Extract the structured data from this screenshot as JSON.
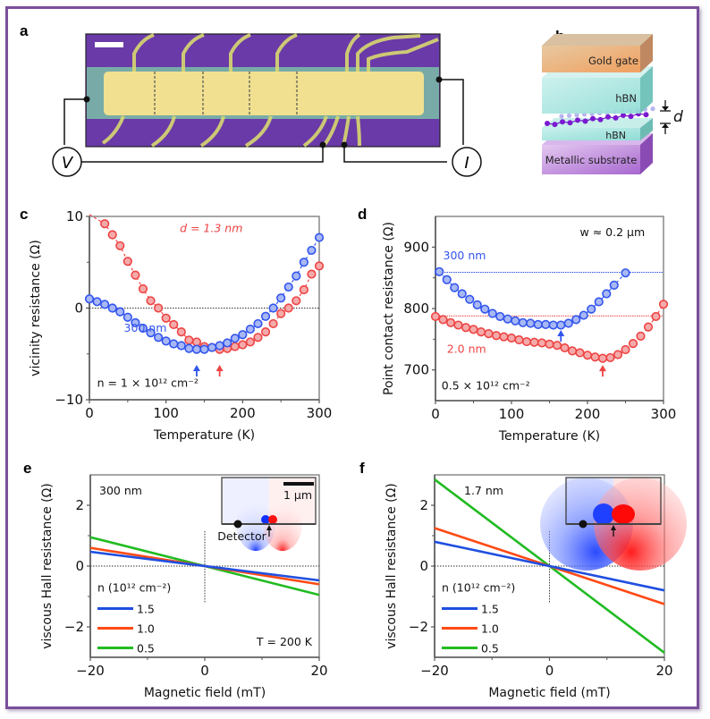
{
  "figure": {
    "panel_labels": [
      "a",
      "b",
      "c",
      "d",
      "e",
      "f"
    ],
    "colors": {
      "frame": "#7a4f9a",
      "blue": "#3355ee",
      "red": "#ee4444",
      "blue_fill": "#a8b8f4",
      "red_fill": "#f4aaaa",
      "line_blue": "#1f4fe0",
      "line_red": "#ff4a14",
      "line_green": "#22bb22"
    }
  },
  "panel_a": {
    "voltmeter_label": "V",
    "current_source_label": "I",
    "description": "optical micrograph of Hall bar device with voltage and current probes",
    "scale_bar": "white scale bar"
  },
  "panel_b": {
    "layers": [
      "Gold gate",
      "hBN",
      "hBN",
      "Metallic substrate"
    ],
    "spacing_label": "d"
  },
  "chart_data": [
    {
      "panel": "c",
      "type": "scatter",
      "title": "",
      "xlabel": "Temperature  (K)",
      "ylabel": "vicinity resistance  (Ω)",
      "xlim": [
        0,
        300
      ],
      "ylim": [
        -10,
        10
      ],
      "xticks": [
        "0",
        "100",
        "200",
        "300"
      ],
      "yticks": [
        "−10",
        "0",
        "10"
      ],
      "zero_line": true,
      "annotation": "n = 1 × 10¹² cm⁻²",
      "series": [
        {
          "name": "300 nm",
          "color": "blue",
          "x": [
            0,
            10,
            20,
            30,
            40,
            50,
            60,
            70,
            80,
            90,
            100,
            110,
            120,
            130,
            140,
            150,
            160,
            170,
            180,
            190,
            200,
            210,
            220,
            230,
            240,
            250,
            260,
            270,
            280,
            290,
            300
          ],
          "y": [
            1.0,
            0.7,
            0.4,
            0.0,
            -0.4,
            -1.0,
            -1.6,
            -2.2,
            -2.7,
            -3.2,
            -3.6,
            -3.9,
            -4.1,
            -4.4,
            -4.5,
            -4.5,
            -4.3,
            -4.1,
            -3.8,
            -3.3,
            -2.9,
            -2.3,
            -1.7,
            -0.9,
            0.0,
            1.1,
            2.3,
            3.5,
            5.0,
            6.3,
            7.7
          ],
          "marker_T": 140
        },
        {
          "name": "d = 1.3 nm",
          "color": "red",
          "x": [
            0,
            20,
            30,
            40,
            50,
            60,
            70,
            80,
            90,
            100,
            110,
            120,
            130,
            140,
            150,
            160,
            170,
            180,
            190,
            200,
            210,
            220,
            230,
            240,
            250,
            260,
            270,
            280,
            290,
            300
          ],
          "y": [
            10.2,
            9.2,
            8.0,
            6.8,
            5.1,
            3.6,
            2.1,
            0.8,
            0.0,
            -1.1,
            -1.8,
            -2.6,
            -3.5,
            -3.7,
            -4.2,
            -4.3,
            -4.5,
            -4.4,
            -4.2,
            -4.0,
            -3.7,
            -3.2,
            -2.6,
            -1.7,
            -0.6,
            0.0,
            0.8,
            2.0,
            3.7,
            4.6
          ],
          "marker_T": 170
        }
      ]
    },
    {
      "panel": "d",
      "type": "scatter",
      "title": "",
      "xlabel": "Temperature  (K)",
      "ylabel": "Point contact resistance  (Ω)",
      "xlim": [
        0,
        300
      ],
      "ylim": [
        650,
        950
      ],
      "xticks": [
        "0",
        "100",
        "200",
        "300"
      ],
      "yticks": [
        "700",
        "800",
        "900"
      ],
      "annotations": [
        "w ≈ 0.2 μm",
        "0.5 × 10¹² cm⁻²"
      ],
      "series": [
        {
          "name": "300 nm",
          "color": "blue",
          "reference_level": 859,
          "x": [
            5,
            15,
            25,
            35,
            45,
            55,
            65,
            75,
            85,
            95,
            105,
            115,
            125,
            135,
            145,
            155,
            165,
            175,
            185,
            195,
            205,
            215,
            225,
            235,
            250
          ],
          "y": [
            860,
            847,
            834,
            824,
            815,
            806,
            799,
            792,
            787,
            783,
            780,
            777,
            776,
            774,
            774,
            773,
            773,
            776,
            782,
            789,
            799,
            811,
            824,
            838,
            858
          ],
          "marker_T": 165
        },
        {
          "name": "2.0 nm",
          "color": "red",
          "reference_level": 788,
          "x": [
            0,
            10,
            20,
            30,
            40,
            50,
            60,
            70,
            80,
            90,
            100,
            110,
            120,
            130,
            140,
            150,
            160,
            170,
            180,
            190,
            200,
            210,
            220,
            230,
            240,
            250,
            260,
            270,
            280,
            290,
            300
          ],
          "y": [
            787,
            782,
            777,
            773,
            769,
            766,
            762,
            759,
            756,
            754,
            752,
            749,
            746,
            745,
            744,
            742,
            740,
            736,
            731,
            728,
            724,
            721,
            719,
            720,
            725,
            733,
            743,
            755,
            770,
            787,
            807
          ],
          "marker_T": 220
        }
      ]
    },
    {
      "panel": "e",
      "type": "line",
      "xlabel": "Magnetic field (mT)",
      "ylabel": "viscous Hall resistance (Ω)",
      "xlim": [
        -20,
        20
      ],
      "ylim": [
        -3,
        3
      ],
      "xticks": [
        "−20",
        "0",
        "20"
      ],
      "yticks": [
        "−2",
        "0",
        "2"
      ],
      "annotations": [
        "300 nm",
        "T = 200 K"
      ],
      "legend_title": "n (10¹² cm⁻²)",
      "legend_position": "lower-left",
      "inset": {
        "scale_bar": "1 μm",
        "detector_label": "Detector"
      },
      "series": [
        {
          "name": "1.5",
          "color": "line_blue",
          "x": [
            -20,
            20
          ],
          "y": [
            0.47,
            -0.47
          ]
        },
        {
          "name": "1.0",
          "color": "line_red",
          "x": [
            -20,
            20
          ],
          "y": [
            0.6,
            -0.6
          ]
        },
        {
          "name": "0.5",
          "color": "line_green",
          "x": [
            -20,
            20
          ],
          "y": [
            0.95,
            -0.95
          ]
        }
      ]
    },
    {
      "panel": "f",
      "type": "line",
      "xlabel": "Magnetic field (mT)",
      "ylabel": "viscous Hall resistance (Ω)",
      "xlim": [
        -20,
        20
      ],
      "ylim": [
        -3,
        3
      ],
      "xticks": [
        "−20",
        "0",
        "20"
      ],
      "yticks": [
        "−2",
        "0",
        "2"
      ],
      "annotations": [
        "1.7 nm"
      ],
      "legend_title": "n (10¹² cm⁻²)",
      "legend_position": "lower-left",
      "series": [
        {
          "name": "1.5",
          "color": "line_blue",
          "x": [
            -20,
            20
          ],
          "y": [
            0.8,
            -0.8
          ]
        },
        {
          "name": "1.0",
          "color": "line_red",
          "x": [
            -20,
            20
          ],
          "y": [
            1.25,
            -1.25
          ]
        },
        {
          "name": "0.5",
          "color": "line_green",
          "x": [
            -20,
            20
          ],
          "y": [
            2.85,
            -2.85
          ]
        }
      ]
    }
  ]
}
